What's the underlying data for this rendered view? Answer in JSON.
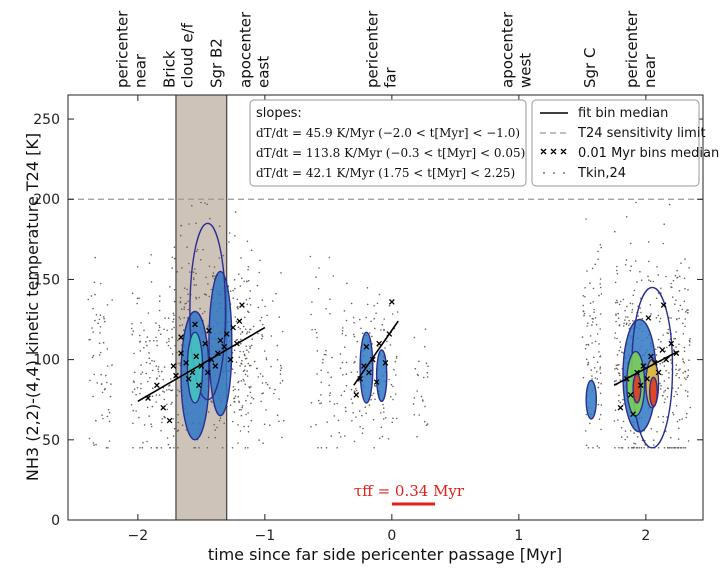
{
  "chart_data": {
    "type": "scatter",
    "xlabel": "time since far side pericenter passage [Myr]",
    "ylabel": "NH3 (2,2)-(4,4) kinetic temperature T24 [K]",
    "xlim": [
      -2.55,
      2.45
    ],
    "ylim": [
      0,
      265
    ],
    "xticks": [
      -2,
      -1,
      0,
      1,
      2
    ],
    "yticks": [
      0,
      50,
      100,
      150,
      200,
      250
    ],
    "xtick_labels": [
      "−2",
      "−1",
      "0",
      "1",
      "2"
    ],
    "ytick_labels": [
      "0",
      "50",
      "100",
      "150",
      "200",
      "250"
    ],
    "grid": false,
    "sensitivity_limit": 200,
    "shaded_region": {
      "x": [
        -1.7,
        -1.3
      ],
      "color": "#cdc3b8"
    },
    "boundary_lines": [
      -1.7,
      -1.3
    ],
    "top_events": [
      {
        "label": "pericenter\nnear",
        "x": -2.05
      },
      {
        "label": "Brick\ncloud e/f",
        "x": -1.68
      },
      {
        "label": "Sgr B2",
        "x": -1.38
      },
      {
        "label": "apocenter\neast",
        "x": -1.08
      },
      {
        "label": "pericenter\nfar",
        "x": -0.08
      },
      {
        "label": "apocenter\nwest",
        "x": 0.98
      },
      {
        "label": "Sgr C",
        "x": 1.56
      },
      {
        "label": "pericenter\nnear",
        "x": 1.96
      }
    ],
    "slopes_box": {
      "title": "slopes:",
      "lines": [
        "dT/dt = 45.9 K/Myr (−2.0 < t[Myr] < −1.0)",
        "dT/dt = 113.8 K/Myr (−0.3 < t[Myr] < 0.05)",
        "dT/dt = 42.1 K/Myr (1.75 < t[Myr] < 2.25)"
      ]
    },
    "legend": {
      "placement": "top-right",
      "entries": [
        {
          "label": "fit bin median",
          "style": "solid"
        },
        {
          "label": "T24 sensitivity limit",
          "style": "dashed"
        },
        {
          "label": "0.01 Myr bins median",
          "style": "x-markers"
        },
        {
          "label": "Tkin,24",
          "style": "dots"
        }
      ]
    },
    "fit_lines": [
      {
        "x": [
          -2.0,
          -1.0
        ],
        "y": [
          74,
          120
        ]
      },
      {
        "x": [
          -0.3,
          0.05
        ],
        "y": [
          84,
          124
        ]
      },
      {
        "x": [
          1.75,
          2.25
        ],
        "y": [
          84,
          105
        ]
      }
    ],
    "bin_medians": [
      {
        "x": -1.92,
        "y": 76
      },
      {
        "x": -1.85,
        "y": 84
      },
      {
        "x": -1.8,
        "y": 70
      },
      {
        "x": -1.75,
        "y": 62
      },
      {
        "x": -1.72,
        "y": 96
      },
      {
        "x": -1.7,
        "y": 90
      },
      {
        "x": -1.66,
        "y": 104
      },
      {
        "x": -1.62,
        "y": 98
      },
      {
        "x": -1.6,
        "y": 88
      },
      {
        "x": -1.57,
        "y": 92
      },
      {
        "x": -1.54,
        "y": 102
      },
      {
        "x": -1.52,
        "y": 84
      },
      {
        "x": -1.5,
        "y": 96
      },
      {
        "x": -1.47,
        "y": 110
      },
      {
        "x": -1.45,
        "y": 92
      },
      {
        "x": -1.42,
        "y": 100
      },
      {
        "x": -1.39,
        "y": 96
      },
      {
        "x": -1.37,
        "y": 104
      },
      {
        "x": -1.35,
        "y": 112
      },
      {
        "x": -1.32,
        "y": 108
      },
      {
        "x": -1.3,
        "y": 116
      },
      {
        "x": -1.27,
        "y": 100
      },
      {
        "x": -1.25,
        "y": 120
      },
      {
        "x": -1.22,
        "y": 110
      },
      {
        "x": -1.2,
        "y": 124
      },
      {
        "x": -1.18,
        "y": 134
      },
      {
        "x": -1.66,
        "y": 114
      },
      {
        "x": -1.55,
        "y": 122
      },
      {
        "x": -1.44,
        "y": 118
      },
      {
        "x": -0.28,
        "y": 78
      },
      {
        "x": -0.25,
        "y": 88
      },
      {
        "x": -0.22,
        "y": 96
      },
      {
        "x": -0.2,
        "y": 108
      },
      {
        "x": -0.18,
        "y": 92
      },
      {
        "x": -0.15,
        "y": 100
      },
      {
        "x": -0.12,
        "y": 86
      },
      {
        "x": -0.1,
        "y": 110
      },
      {
        "x": -0.05,
        "y": 98
      },
      {
        "x": -0.02,
        "y": 116
      },
      {
        "x": 0.0,
        "y": 136
      },
      {
        "x": 1.8,
        "y": 70
      },
      {
        "x": 1.85,
        "y": 88
      },
      {
        "x": 1.88,
        "y": 78
      },
      {
        "x": 1.9,
        "y": 66
      },
      {
        "x": 1.93,
        "y": 92
      },
      {
        "x": 1.96,
        "y": 84
      },
      {
        "x": 1.98,
        "y": 96
      },
      {
        "x": 2.01,
        "y": 88
      },
      {
        "x": 2.04,
        "y": 102
      },
      {
        "x": 2.07,
        "y": 98
      },
      {
        "x": 2.1,
        "y": 92
      },
      {
        "x": 2.13,
        "y": 106
      },
      {
        "x": 2.16,
        "y": 100
      },
      {
        "x": 2.2,
        "y": 110
      },
      {
        "x": 2.24,
        "y": 104
      },
      {
        "x": 2.14,
        "y": 134
      },
      {
        "x": 2.02,
        "y": 126
      }
    ],
    "tff_annotation": {
      "label": "τff = 0.34 Myr",
      "x_start": 0.0,
      "x_end": 0.34,
      "y": 10,
      "color": "#e0201b"
    }
  }
}
